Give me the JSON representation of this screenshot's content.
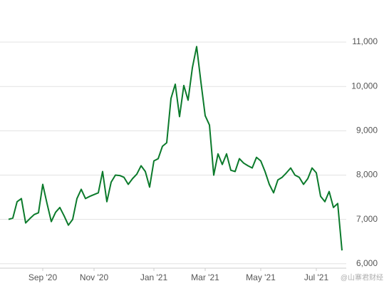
{
  "chart_data": {
    "type": "line",
    "categories": [
      null,
      null,
      null,
      null,
      null,
      null,
      null,
      null,
      "Sep '20",
      null,
      null,
      null,
      null,
      null,
      null,
      null,
      null,
      null,
      null,
      null,
      "Nov '20",
      null,
      null,
      null,
      null,
      null,
      null,
      null,
      null,
      null,
      null,
      null,
      null,
      null,
      "Jan '21",
      null,
      null,
      null,
      null,
      null,
      null,
      null,
      null,
      null,
      null,
      null,
      "Mar '21",
      null,
      null,
      null,
      null,
      null,
      null,
      null,
      null,
      null,
      null,
      null,
      null,
      "May '21",
      null,
      null,
      null,
      null,
      null,
      null,
      null,
      null,
      null,
      null,
      null,
      null,
      "Jul '21",
      null,
      null,
      null,
      null,
      null,
      null
    ],
    "series": [
      {
        "color": "#0b7a2b",
        "values": [
          7000,
          7030,
          7400,
          7470,
          6920,
          7020,
          7110,
          7150,
          7790,
          7360,
          6950,
          7160,
          7270,
          7080,
          6870,
          7000,
          7470,
          7680,
          7470,
          7520,
          7560,
          7600,
          8080,
          7400,
          7840,
          8000,
          7990,
          7950,
          7790,
          7920,
          8020,
          8210,
          8080,
          7730,
          8320,
          8370,
          8650,
          8730,
          9730,
          10050,
          9320,
          10020,
          9690,
          10420,
          10900,
          10100,
          9340,
          9130,
          8000,
          8480,
          8240,
          8480,
          8110,
          8080,
          8370,
          8270,
          8210,
          8160,
          8400,
          8320,
          8080,
          7790,
          7600,
          7890,
          7950,
          8050,
          8160,
          8000,
          7950,
          7790,
          7920,
          8160,
          8050,
          7520,
          7400,
          7630,
          7270,
          7360,
          6300
        ]
      }
    ],
    "ylim": [
      5900,
      11950
    ],
    "yticks": [
      {
        "value": 6000,
        "label": "6,000"
      },
      {
        "value": 7000,
        "label": "7,000"
      },
      {
        "value": 8000,
        "label": "8,000"
      },
      {
        "value": 9000,
        "label": "9,000"
      },
      {
        "value": 10000,
        "label": "10,000"
      },
      {
        "value": 11000,
        "label": "11,000"
      }
    ],
    "grid": true,
    "watermark": "@山寨君财经"
  }
}
